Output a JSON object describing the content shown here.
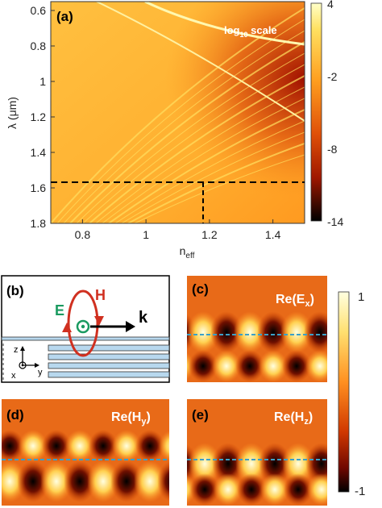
{
  "figure": {
    "panel_a": {
      "label": "(a)",
      "note": "log",
      "note_sub": "10",
      "note_tail": " scale",
      "xlabel": "n",
      "xlabel_sub": "eff",
      "ylabel": "λ (μm)",
      "xticks": [
        "0.8",
        "1",
        "1.2",
        "1.4"
      ],
      "yticks": [
        "0.6",
        "0.8",
        "1",
        "1.2",
        "1.4",
        "1.6",
        "1.8"
      ],
      "colorbar_ticks": [
        "4",
        "-2",
        "-8",
        "-14"
      ]
    },
    "panel_b": {
      "label": "(b)",
      "E": "E",
      "H": "H",
      "k": "k",
      "axis_z": "z",
      "axis_y": "y",
      "axis_x": "x"
    },
    "panel_c": {
      "label": "(c)",
      "field": "Re(E",
      "field_sub": "x",
      "field_tail": ")"
    },
    "panel_d": {
      "label": "(d)",
      "field": "Re(H",
      "field_sub": "y",
      "field_tail": ")"
    },
    "panel_e": {
      "label": "(e)",
      "field": "Re(H",
      "field_sub": "z",
      "field_tail": ")"
    },
    "colorbar2_ticks": [
      "1",
      "-1"
    ]
  },
  "chart_data": {
    "type": "heatmap",
    "x_range": [
      0.7,
      1.5
    ],
    "y_range": [
      0.55,
      1.8
    ],
    "color_range": [
      -14,
      4
    ],
    "scale": "log10",
    "marked_point": {
      "n_eff": 1.17,
      "wavelength_um": 1.55
    }
  }
}
